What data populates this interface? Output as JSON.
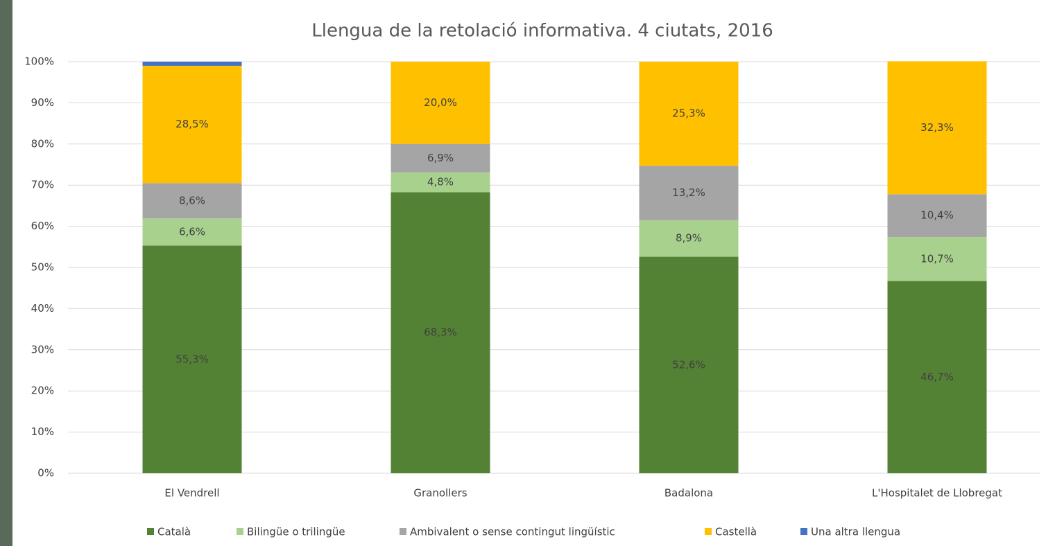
{
  "chart_data": {
    "type": "stacked_bar",
    "title": "Llengua de la retolació informativa. 4 ciutats, 2016",
    "categories": [
      "El Vendrell",
      "Granollers",
      "Badalona",
      "L'Hospitalet de Llobregat"
    ],
    "series": [
      {
        "name": "Català",
        "color": "#548235",
        "values": [
          55.3,
          68.3,
          52.6,
          46.7
        ],
        "value_labels": [
          "55,3%",
          "68,3%",
          "52,6%",
          "46,7%"
        ]
      },
      {
        "name": "Bilingüe o trilingüe",
        "color": "#a9d18e",
        "values": [
          6.6,
          4.8,
          8.9,
          10.7
        ],
        "value_labels": [
          "6,6%",
          "4,8%",
          "8,9%",
          "10,7%"
        ]
      },
      {
        "name": "Ambivalent o sense contingut lingüístic",
        "color": "#a5a5a5",
        "values": [
          8.6,
          6.9,
          13.2,
          10.4
        ],
        "value_labels": [
          "8,6%",
          "6,9%",
          "13,2%",
          "10,4%"
        ]
      },
      {
        "name": "Castellà",
        "color": "#ffc000",
        "values": [
          28.5,
          20.0,
          25.3,
          32.3
        ],
        "value_labels": [
          "28,5%",
          "20,0%",
          "25,3%",
          "32,3%"
        ]
      },
      {
        "name": "Una altra llengua",
        "color": "#4472c4",
        "values": [
          1.0,
          0,
          0,
          0
        ]
      }
    ],
    "ylim": [
      0,
      100
    ],
    "yticks": [
      {
        "value": 0,
        "label": "0%"
      },
      {
        "value": 10,
        "label": "10%"
      },
      {
        "value": 20,
        "label": "20%"
      },
      {
        "value": 30,
        "label": "30%"
      },
      {
        "value": 40,
        "label": "40%"
      },
      {
        "value": 50,
        "label": "50%"
      },
      {
        "value": 60,
        "label": "60%"
      },
      {
        "value": 70,
        "label": "70%"
      },
      {
        "value": 80,
        "label": "80%"
      },
      {
        "value": 90,
        "label": "90%"
      },
      {
        "value": 100,
        "label": "100%"
      }
    ],
    "grid": true,
    "legend": "bottom"
  }
}
